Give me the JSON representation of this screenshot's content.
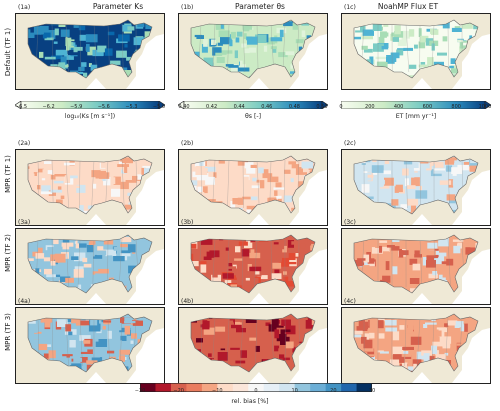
{
  "columns": [
    {
      "title": "Parameter Ks"
    },
    {
      "title": "Parameter θs"
    },
    {
      "title": "NoahMP Flux ET"
    }
  ],
  "rows": [
    {
      "label": "Default (TF 1)"
    },
    {
      "label": "MPR (TF 1)"
    },
    {
      "label": "MPR (TF 2)"
    },
    {
      "label": "MPR (TF 3)"
    }
  ],
  "panels": [
    [
      "(1a)",
      "(1b)",
      "(1c)"
    ],
    [
      "(2a)",
      "(2b)",
      "(2c)"
    ],
    [
      "(3a)",
      "(3b)",
      "(3c)"
    ],
    [
      "(4a)",
      "(4b)",
      "(4c)"
    ]
  ],
  "colorbars": [
    {
      "ticks": [
        "−6.5",
        "−6.2",
        "−5.9",
        "−5.6",
        "−5.3",
        "−5.0"
      ],
      "label": "log₁₀(Ks [m s⁻¹])"
    },
    {
      "ticks": [
        "0.40",
        "0.42",
        "0.44",
        "0.46",
        "0.48",
        "0.50"
      ],
      "label": "θs [-]"
    },
    {
      "ticks": [
        "0",
        "200",
        "400",
        "600",
        "800",
        "1000"
      ],
      "label": "ET [mm yr⁻¹]"
    }
  ],
  "bias_colorbar": {
    "ticks": [
      "−30",
      "−20",
      "−10",
      "0",
      "10",
      "20",
      "30"
    ],
    "label": "rel. bias [%]"
  },
  "colors": {
    "default_low": "#f7fcf0",
    "default_mid": "#7bccc4",
    "default_high": "#084081",
    "bias_neg": "#b2182b",
    "bias_zero": "#f7f7f7",
    "bias_pos": "#2166ac",
    "land": "#efe9d6",
    "water": "#ffffff"
  },
  "map_tones": [
    [
      "default-blue",
      "default-cyan",
      "default-green"
    ],
    [
      "bias-lightred",
      "bias-lightred",
      "bias-mixed-light"
    ],
    [
      "bias-mixed-blue",
      "bias-red",
      "bias-red-medium"
    ],
    [
      "bias-blue-red",
      "bias-red-strong",
      "bias-red-medium"
    ]
  ]
}
